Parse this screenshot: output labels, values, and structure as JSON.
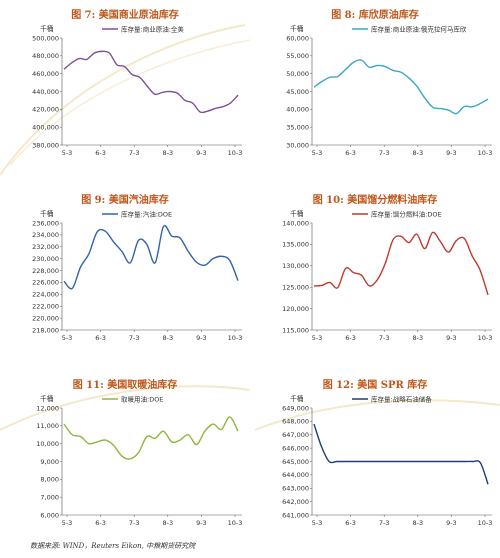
{
  "source": "数据来源: WIND，Reuters Eikon, 中粮期货研究院",
  "chart_data": [
    {
      "type": "line",
      "title": "图 7: 美国商业原油库存",
      "unit": "千桶",
      "x_labels": [
        "5-3",
        "6-3",
        "7-3",
        "8-3",
        "9-3",
        "10-3"
      ],
      "ylim": [
        380000,
        500000
      ],
      "yticks": [
        380000,
        400000,
        420000,
        440000,
        460000,
        480000,
        500000
      ],
      "series": [
        {
          "name": "库存量:商业原油:全美",
          "color": "#7f4f9c",
          "values": [
            465000,
            472000,
            477000,
            476000,
            483000,
            485000,
            483000,
            470000,
            468000,
            459000,
            456000,
            446000,
            437000,
            439000,
            440000,
            438000,
            430000,
            427000,
            417000,
            418000,
            421000,
            423000,
            427000,
            436000
          ]
        }
      ]
    },
    {
      "type": "line",
      "title": "图 8: 库欣原油库存",
      "unit": "千桶",
      "x_labels": [
        "5-3",
        "6-3",
        "7-3",
        "8-3",
        "9-3",
        "10-3"
      ],
      "ylim": [
        30000,
        60000
      ],
      "yticks": [
        30000,
        35000,
        40000,
        45000,
        50000,
        55000,
        60000
      ],
      "series": [
        {
          "name": "库存量:商业原油:俄克拉何马库欣",
          "color": "#39a8c4",
          "values": [
            46200,
            47800,
            49000,
            49200,
            51200,
            53200,
            53800,
            51800,
            52300,
            52000,
            50900,
            50400,
            48800,
            46500,
            43200,
            40600,
            40200,
            39800,
            38800,
            40800,
            40700,
            41600,
            42900
          ]
        }
      ]
    },
    {
      "type": "line",
      "title": "图 9: 美国汽油库存",
      "unit": "千桶",
      "x_labels": [
        "5-3",
        "6-3",
        "7-3",
        "8-3",
        "9-3",
        "10-3"
      ],
      "ylim": [
        218000,
        236000
      ],
      "yticks": [
        218000,
        220000,
        222000,
        224000,
        226000,
        228000,
        230000,
        232000,
        234000,
        236000
      ],
      "series": [
        {
          "name": "库存量:汽油:DOE",
          "color": "#2f63b0",
          "values": [
            226200,
            225000,
            228600,
            230800,
            234500,
            234600,
            232800,
            231200,
            229300,
            233100,
            232400,
            229300,
            235400,
            233800,
            233500,
            231200,
            229400,
            228900,
            230000,
            230400,
            229700,
            226300
          ]
        }
      ]
    },
    {
      "type": "line",
      "title": "图 10: 美国馏分燃料油库存",
      "unit": "千桶",
      "x_labels": [
        "5-3",
        "6-3",
        "7-3",
        "8-3",
        "9-3",
        "10-3"
      ],
      "ylim": [
        115000,
        140000
      ],
      "yticks": [
        115000,
        120000,
        125000,
        130000,
        135000,
        140000
      ],
      "series": [
        {
          "name": "库存量:馏分燃料油:DOE",
          "color": "#c0392b",
          "values": [
            125300,
            125400,
            126100,
            124900,
            129400,
            128400,
            127800,
            125300,
            126700,
            130500,
            136100,
            136900,
            135400,
            137400,
            134000,
            137800,
            135600,
            133200,
            135900,
            136400,
            132300,
            129000,
            123200
          ]
        }
      ]
    },
    {
      "type": "line",
      "title": "图 11: 美国取暖油库存",
      "unit": "千桶",
      "x_labels": [
        "5-3",
        "6-3",
        "7-3",
        "8-3",
        "9-3",
        "10-3"
      ],
      "ylim": [
        6000,
        12000
      ],
      "yticks": [
        6000,
        7000,
        8000,
        9000,
        10000,
        11000,
        12000
      ],
      "series": [
        {
          "name": "取暖用油:DOE",
          "color": "#8db83c",
          "values": [
            11100,
            10500,
            10400,
            10000,
            10100,
            10200,
            9900,
            9300,
            9150,
            9500,
            10400,
            10300,
            10700,
            10100,
            10200,
            10500,
            9950,
            10700,
            11100,
            10800,
            11500,
            10700
          ]
        }
      ]
    },
    {
      "type": "line",
      "title": "图 12: 美国 SPR 库存",
      "unit": "千桶",
      "x_labels": [
        "5-3",
        "6-3",
        "7-3",
        "8-3",
        "9-3",
        "10-3"
      ],
      "ylim": [
        641000,
        649000
      ],
      "yticks": [
        641000,
        642000,
        643000,
        644000,
        645000,
        646000,
        647000,
        648000,
        649000
      ],
      "series": [
        {
          "name": "库存量:战略石油储备",
          "color": "#1f3e7a",
          "values": [
            647800,
            646100,
            645000,
            645000,
            645000,
            645000,
            645000,
            645000,
            645000,
            645000,
            645000,
            645000,
            645000,
            645000,
            645000,
            645000,
            645000,
            645000,
            645000,
            645000,
            645000,
            645000,
            644900,
            643300
          ]
        }
      ]
    }
  ]
}
